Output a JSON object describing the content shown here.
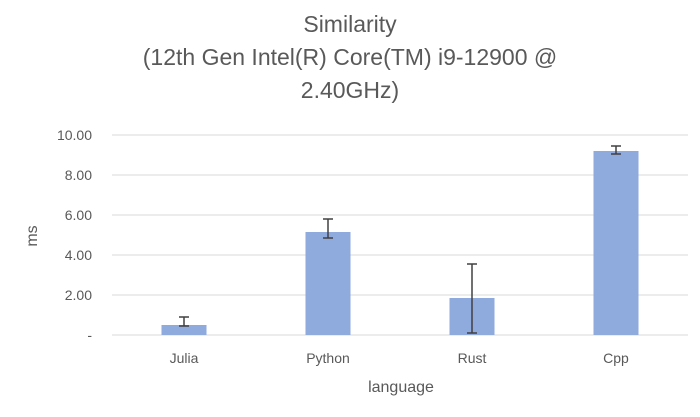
{
  "chart_data": {
    "type": "bar",
    "title": [
      "Similarity",
      "(12th Gen Intel(R) Core(TM) i9-12900 @",
      "2.40GHz)"
    ],
    "xlabel": "language",
    "ylabel": "ms",
    "categories": [
      "Julia",
      "Python",
      "Rust",
      "Cpp"
    ],
    "values": [
      0.5,
      5.15,
      1.85,
      9.2
    ],
    "error_low": [
      0.45,
      4.85,
      0.1,
      9.05
    ],
    "error_high": [
      0.9,
      5.8,
      3.55,
      9.45
    ],
    "ylim": [
      0,
      10
    ],
    "yticks": [
      0,
      2,
      4,
      6,
      8,
      10
    ],
    "ytick_labels": [
      "-",
      "2.00",
      "4.00",
      "6.00",
      "8.00",
      "10.00"
    ],
    "grid": true,
    "bar_color": "#8faadc",
    "errorbar_color": "#404040",
    "grid_color": "#d9d9d9"
  }
}
